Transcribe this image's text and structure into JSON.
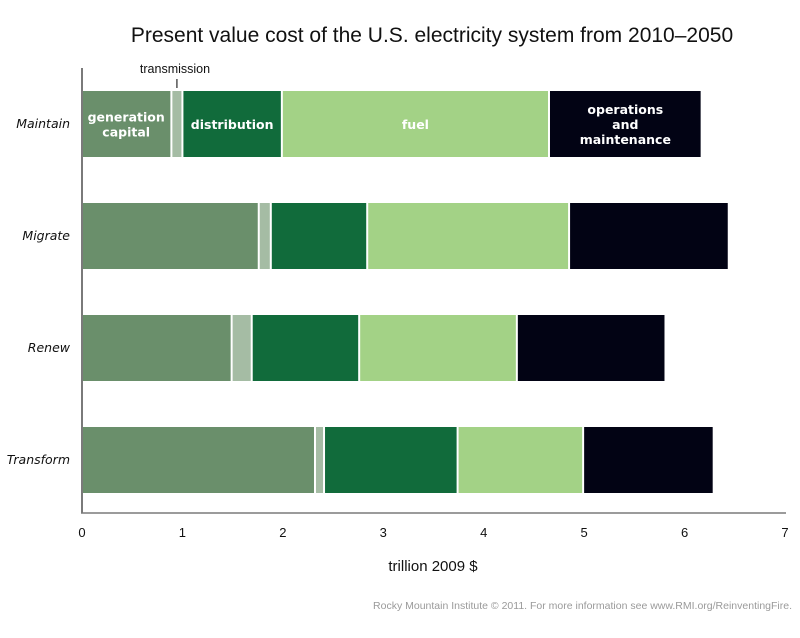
{
  "chart_data": {
    "type": "bar",
    "orientation": "horizontal",
    "stacked": true,
    "title": "Present value cost of the U.S. electricity system from 2010–2050",
    "xlabel": "trillion 2009 $",
    "ylabel": "",
    "xlim": [
      0,
      7
    ],
    "x_ticks": [
      "0",
      "1",
      "2",
      "3",
      "4",
      "5",
      "6",
      "7"
    ],
    "grid": false,
    "categories": [
      "Maintain",
      "Migrate",
      "Renew",
      "Transform"
    ],
    "series": [
      {
        "name": "generation capital",
        "label": [
          "generation",
          "capital"
        ],
        "color": "#6a8f6b",
        "values": [
          0.88,
          1.75,
          1.48,
          2.31
        ]
      },
      {
        "name": "transmission",
        "label": [],
        "color": "#a5bca4",
        "values": [
          0.11,
          0.12,
          0.2,
          0.09
        ]
      },
      {
        "name": "distribution",
        "label": [
          "distribution"
        ],
        "color": "#116b3b",
        "values": [
          0.99,
          0.96,
          1.07,
          1.33
        ]
      },
      {
        "name": "fuel",
        "label": [
          "fuel"
        ],
        "color": "#a3d286",
        "values": [
          2.66,
          2.01,
          1.57,
          1.25
        ]
      },
      {
        "name": "operations and maintenance",
        "label": [
          "operations",
          "and",
          "maintenance"
        ],
        "color": "#020314",
        "values": [
          1.52,
          1.59,
          1.48,
          1.3
        ]
      }
    ],
    "annotations": [
      {
        "text": "transmission",
        "target_category": "Maintain",
        "target_series": "transmission"
      }
    ],
    "segment_labels_on_category": "Maintain",
    "legend": "none (inline labels on first bar)"
  },
  "footer": "Rocky Mountain Institute © 2011. For more information see www.RMI.org/ReinventingFire."
}
